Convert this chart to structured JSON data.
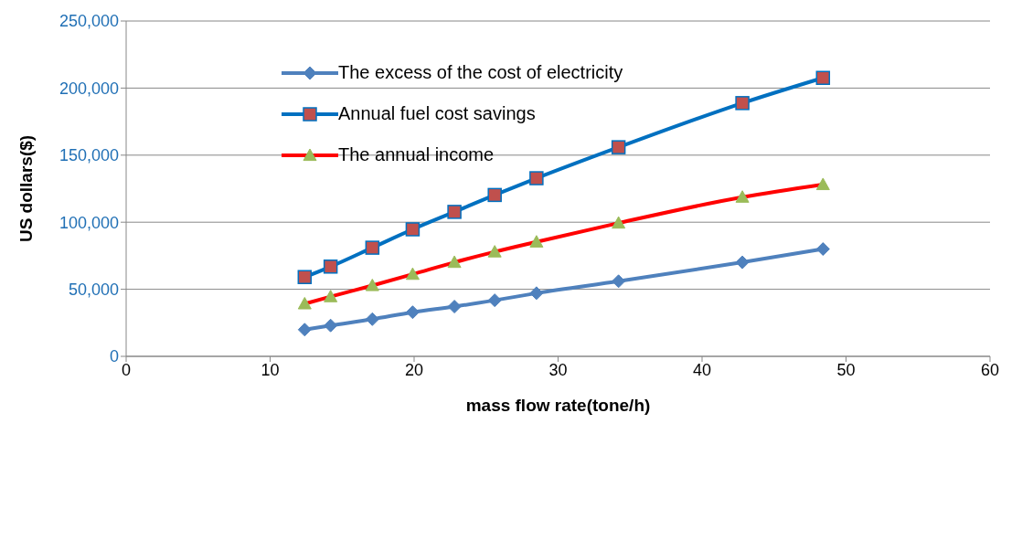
{
  "chart_data": {
    "type": "line",
    "xlabel": "mass flow rate(tone/h)",
    "ylabel": "US dollars($)",
    "x": [
      12.4,
      14.2,
      17.1,
      19.9,
      22.8,
      25.6,
      28.5,
      34.2,
      42.8,
      48.4
    ],
    "series": [
      {
        "name": "The excess of the cost of electricity",
        "color": "#4f81bd",
        "marker": "diamond",
        "values": [
          19900,
          23000,
          27700,
          32900,
          37100,
          41800,
          47100,
          56000,
          70100,
          80000
        ]
      },
      {
        "name": "Annual fuel cost savings",
        "color": "#0070c0",
        "marker": "square",
        "colors": [
          "#c0504d",
          "#c0504d",
          "#c0504d",
          "#c0504d",
          "#c0504d",
          "#c0504d",
          "#c0504d",
          "#c0504d",
          "#c0504d",
          "#c0504d"
        ],
        "values": [
          59100,
          66900,
          81000,
          94700,
          107700,
          120300,
          132800,
          155900,
          188800,
          207600
        ]
      },
      {
        "name": "The annual income",
        "color": "#ff0000",
        "marker": "triangle",
        "colors": [
          "#9bbb59",
          "#9bbb59",
          "#9bbb59",
          "#9bbb59",
          "#9bbb59",
          "#9bbb59",
          "#9bbb59",
          "#9bbb59",
          "#9bbb59",
          "#9bbb59"
        ],
        "values": [
          39200,
          44500,
          52800,
          61200,
          70100,
          77900,
          85300,
          99400,
          118700,
          128100
        ]
      }
    ],
    "xlim": [
      0,
      60
    ],
    "xticks": [
      0,
      10,
      20,
      30,
      40,
      50,
      60
    ],
    "ylim": [
      0,
      250000
    ],
    "yticks": [
      0,
      {
        "value": 50000,
        "label": "50,000"
      },
      {
        "value": 100000,
        "label": "100,000"
      },
      {
        "value": 150000,
        "label": "150,000"
      },
      {
        "value": 200000,
        "label": "200,000"
      },
      {
        "value": 250000,
        "label": "250,000"
      }
    ],
    "grid": "y",
    "legend": "top left",
    "line_style": "solid"
  }
}
